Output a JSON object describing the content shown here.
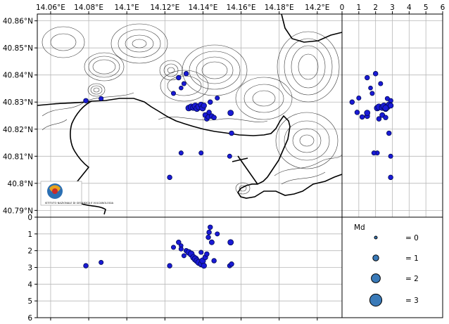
{
  "map": {
    "lon_ticks": [
      "14.06°E",
      "14.08°E",
      "14.1°E",
      "14.12°E",
      "14.14°E",
      "14.16°E",
      "14.18°E",
      "14.2°E"
    ],
    "lat_ticks": [
      "40.86°N",
      "40.85°N",
      "40.84°N",
      "40.83°N",
      "40.82°N",
      "40.81°N",
      "40.8°N",
      "40.79°N"
    ],
    "land_color": "#ffffff",
    "sea_color": "#ffffff",
    "logo_caption": "ISTITUTO NAZIONALE DI GEOFISICA E VULCANOLOGIA"
  },
  "depth_axis_right": {
    "ticks": [
      "0",
      "1",
      "2",
      "3",
      "4",
      "5",
      "6"
    ]
  },
  "depth_axis_bottom": {
    "ticks": [
      "0",
      "1",
      "2",
      "3",
      "4",
      "5",
      "6"
    ]
  },
  "legend": {
    "title": "Md",
    "items": [
      {
        "label": "= 0",
        "md": 0
      },
      {
        "label": "= 1",
        "md": 1
      },
      {
        "label": "= 2",
        "md": 2
      },
      {
        "label": "= 3",
        "md": 3
      }
    ],
    "color": "#3a7ab8"
  },
  "chart_data": {
    "type": "scatter",
    "lon_range": [
      14.053,
      14.213
    ],
    "lat_range": [
      40.7875,
      40.8625
    ],
    "depth_range": [
      0,
      6
    ],
    "marker_color": "#1a1ad6",
    "events": [
      {
        "lon": 14.0785,
        "lat": 40.8305,
        "depth": 2.9,
        "md": 0.6
      },
      {
        "lon": 14.0865,
        "lat": 40.8313,
        "depth": 2.7,
        "md": 0.5
      },
      {
        "lon": 14.1225,
        "lat": 40.8022,
        "depth": 2.9,
        "md": 0.6
      },
      {
        "lon": 14.1245,
        "lat": 40.8332,
        "depth": 1.8,
        "md": 0.5
      },
      {
        "lon": 14.1272,
        "lat": 40.839,
        "depth": 1.5,
        "md": 0.6
      },
      {
        "lon": 14.1285,
        "lat": 40.8352,
        "depth": 1.7,
        "md": 0.4
      },
      {
        "lon": 14.13,
        "lat": 40.8368,
        "depth": 2.3,
        "md": 0.5
      },
      {
        "lon": 14.1312,
        "lat": 40.8405,
        "depth": 2.0,
        "md": 0.6
      },
      {
        "lon": 14.1325,
        "lat": 40.8278,
        "depth": 2.1,
        "md": 1.0
      },
      {
        "lon": 14.1338,
        "lat": 40.8282,
        "depth": 2.2,
        "md": 1.1
      },
      {
        "lon": 14.135,
        "lat": 40.828,
        "depth": 2.4,
        "md": 1.0
      },
      {
        "lon": 14.136,
        "lat": 40.8285,
        "depth": 2.5,
        "md": 1.2
      },
      {
        "lon": 14.1368,
        "lat": 40.8276,
        "depth": 2.6,
        "md": 1.0
      },
      {
        "lon": 14.1378,
        "lat": 40.8283,
        "depth": 2.7,
        "md": 1.1
      },
      {
        "lon": 14.139,
        "lat": 40.829,
        "depth": 2.8,
        "md": 0.9
      },
      {
        "lon": 14.1398,
        "lat": 40.8278,
        "depth": 2.6,
        "md": 1.0
      },
      {
        "lon": 14.1405,
        "lat": 40.8287,
        "depth": 2.9,
        "md": 0.8
      },
      {
        "lon": 14.1412,
        "lat": 40.8252,
        "depth": 2.4,
        "md": 0.7
      },
      {
        "lon": 14.142,
        "lat": 40.8238,
        "depth": 2.2,
        "md": 0.6
      },
      {
        "lon": 14.1428,
        "lat": 40.8245,
        "depth": 1.2,
        "md": 0.6
      },
      {
        "lon": 14.1432,
        "lat": 40.8262,
        "depth": 0.9,
        "md": 0.6
      },
      {
        "lon": 14.1438,
        "lat": 40.83,
        "depth": 0.6,
        "md": 0.6
      },
      {
        "lon": 14.1446,
        "lat": 40.8248,
        "depth": 1.5,
        "md": 0.7
      },
      {
        "lon": 14.1458,
        "lat": 40.8243,
        "depth": 2.6,
        "md": 0.6
      },
      {
        "lon": 14.1475,
        "lat": 40.8315,
        "depth": 1.0,
        "md": 0.5
      },
      {
        "lon": 14.139,
        "lat": 40.8112,
        "depth": 2.1,
        "md": 0.5
      },
      {
        "lon": 14.1285,
        "lat": 40.8112,
        "depth": 1.9,
        "md": 0.5
      },
      {
        "lon": 14.1545,
        "lat": 40.826,
        "depth": 1.5,
        "md": 0.9
      },
      {
        "lon": 14.154,
        "lat": 40.81,
        "depth": 2.9,
        "md": 0.5
      },
      {
        "lon": 14.155,
        "lat": 40.8185,
        "depth": 2.8,
        "md": 0.6
      }
    ]
  }
}
